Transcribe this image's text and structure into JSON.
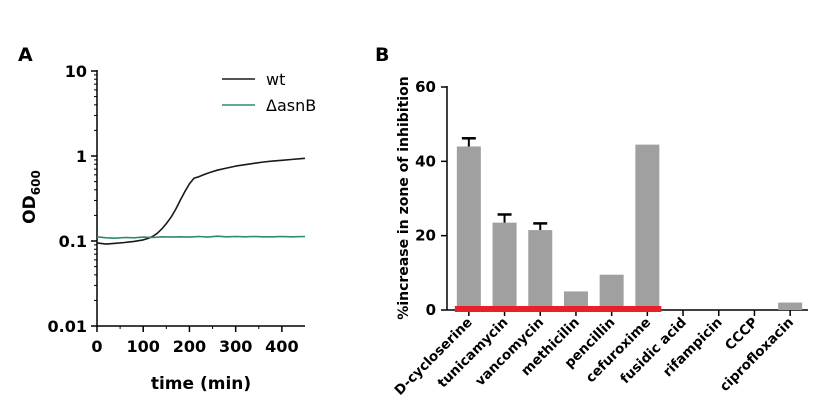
{
  "panel_a_label": "A",
  "panel_b_label": "B",
  "chart_data": [
    {
      "type": "line",
      "title": "",
      "xlabel": "time (min)",
      "ylabel": "OD",
      "ylabel_sub": "600",
      "xlim": [
        0,
        450
      ],
      "ylim": [
        0.01,
        10
      ],
      "y_scale": "log",
      "xticks": [
        0,
        100,
        200,
        300,
        400
      ],
      "yticks": [
        {
          "value": 10,
          "label": "10"
        },
        {
          "value": 1,
          "label": "1"
        },
        {
          "value": 0.1,
          "label": "0.1"
        },
        {
          "value": 0.01,
          "label": "0.01"
        }
      ],
      "grid": false,
      "legend_position": "top-right",
      "series": [
        {
          "name": "wt",
          "color": "#1a1a1a",
          "x": [
            0,
            20,
            40,
            60,
            80,
            100,
            110,
            120,
            130,
            140,
            150,
            160,
            170,
            180,
            190,
            200,
            210,
            220,
            230,
            240,
            260,
            280,
            300,
            320,
            340,
            360,
            380,
            400,
            420,
            440,
            450
          ],
          "y": [
            0.095,
            0.092,
            0.094,
            0.096,
            0.099,
            0.103,
            0.107,
            0.113,
            0.123,
            0.138,
            0.16,
            0.19,
            0.235,
            0.3,
            0.38,
            0.47,
            0.55,
            0.57,
            0.6,
            0.63,
            0.68,
            0.72,
            0.76,
            0.79,
            0.82,
            0.85,
            0.87,
            0.89,
            0.91,
            0.93,
            0.94
          ]
        },
        {
          "name": "ΔasnB",
          "color": "#2e8b6e",
          "x": [
            0,
            20,
            40,
            60,
            80,
            100,
            120,
            140,
            160,
            180,
            200,
            220,
            240,
            260,
            280,
            300,
            320,
            340,
            360,
            380,
            400,
            420,
            450
          ],
          "y": [
            0.112,
            0.109,
            0.108,
            0.11,
            0.109,
            0.111,
            0.11,
            0.112,
            0.111,
            0.112,
            0.111,
            0.113,
            0.111,
            0.114,
            0.112,
            0.113,
            0.112,
            0.113,
            0.112,
            0.112,
            0.113,
            0.112,
            0.113
          ]
        }
      ]
    },
    {
      "type": "bar",
      "title": "",
      "xlabel": "",
      "ylabel": "%increase in zone of inhibition",
      "ylim": [
        0,
        60
      ],
      "yticks": [
        0,
        20,
        40,
        60
      ],
      "grid": false,
      "bar_color": "#a0a0a0",
      "baseline_color": "#e8202a",
      "categories": [
        "D-cycloserine",
        "tunicamycin",
        "vancomycin",
        "methicilin",
        "pencillin",
        "cefuroxime",
        "fusidic acid",
        "rifampicin",
        "CCCP",
        "ciprofloxacin"
      ],
      "values": [
        44,
        23.5,
        21.5,
        5,
        9.5,
        44.5,
        0,
        0,
        0,
        2
      ],
      "errors": [
        2.2,
        2.2,
        1.8,
        0,
        0,
        0,
        0,
        0,
        0,
        0
      ]
    }
  ]
}
